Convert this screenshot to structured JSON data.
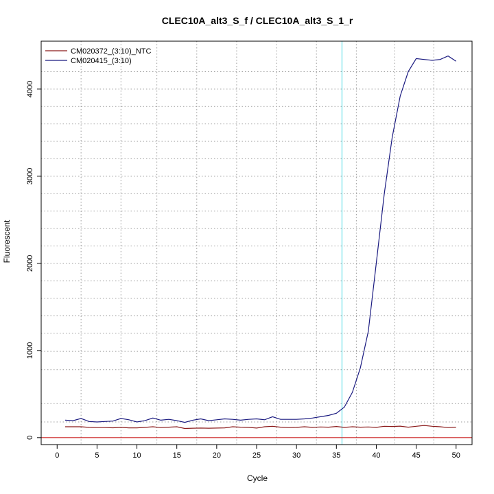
{
  "chart_data": {
    "type": "line",
    "title": "CLEC10A_alt3_S_f / CLEC10A_alt3_S_1_r",
    "xlabel": "Cycle",
    "ylabel": "Fluorescent",
    "xlim": [
      -2,
      52
    ],
    "ylim": [
      -80,
      4550
    ],
    "x_ticks": [
      0,
      5,
      10,
      15,
      20,
      25,
      30,
      35,
      40,
      45,
      50
    ],
    "y_ticks": [
      0,
      1000,
      2000,
      3000,
      4000
    ],
    "grid": true,
    "grid_x": [
      3,
      8,
      12.5,
      17.5,
      22.5,
      27.5,
      32.5,
      37.5,
      42.3,
      47.2
    ],
    "grid_y": [
      180,
      390,
      780,
      990,
      1200,
      1400,
      1600,
      1800,
      2000,
      2200,
      2400,
      2600,
      2800,
      3000,
      3200,
      3400,
      3600,
      3800,
      4000,
      4200
    ],
    "legend_position": "top-left",
    "series": [
      {
        "name": "CM020372_(3:10)_NTC",
        "color": "#8b1a1a",
        "x": [
          1,
          2,
          3,
          4,
          5,
          6,
          7,
          8,
          9,
          10,
          11,
          12,
          13,
          14,
          15,
          16,
          17,
          18,
          19,
          20,
          21,
          22,
          23,
          24,
          25,
          26,
          27,
          28,
          29,
          30,
          31,
          32,
          33,
          34,
          35,
          36,
          37,
          38,
          39,
          40,
          41,
          42,
          43,
          44,
          45,
          46,
          47,
          48,
          49,
          50
        ],
        "values": [
          125,
          125,
          125,
          118,
          115,
          115,
          113,
          118,
          112,
          112,
          118,
          125,
          115,
          120,
          125,
          105,
          108,
          110,
          108,
          110,
          112,
          125,
          120,
          118,
          110,
          125,
          130,
          120,
          115,
          118,
          125,
          118,
          122,
          120,
          128,
          118,
          125,
          120,
          122,
          118,
          130,
          128,
          132,
          120,
          130,
          140,
          130,
          125,
          115,
          120
        ]
      },
      {
        "name": "CM020415_(3:10)",
        "color": "#1a1a80",
        "x": [
          1,
          2,
          3,
          4,
          5,
          6,
          7,
          8,
          9,
          10,
          11,
          12,
          13,
          14,
          15,
          16,
          17,
          18,
          19,
          20,
          21,
          22,
          23,
          24,
          25,
          26,
          27,
          28,
          29,
          30,
          31,
          32,
          33,
          34,
          35,
          36,
          37,
          38,
          39,
          40,
          41,
          42,
          43,
          44,
          45,
          46,
          47,
          48,
          49,
          50
        ],
        "values": [
          200,
          195,
          220,
          185,
          180,
          185,
          190,
          220,
          205,
          180,
          195,
          225,
          200,
          210,
          195,
          175,
          200,
          215,
          195,
          205,
          215,
          210,
          200,
          210,
          215,
          205,
          240,
          210,
          210,
          210,
          215,
          225,
          240,
          255,
          280,
          350,
          520,
          800,
          1220,
          2000,
          2800,
          3450,
          3920,
          4200,
          4350,
          4340,
          4330,
          4340,
          4380,
          4320
        ]
      },
      {
        "name": "",
        "color": "#cc2222",
        "x": [
          -2,
          52
        ],
        "values": [
          0,
          0
        ]
      }
    ],
    "threshold_line": {
      "x": 35.7,
      "color": "#66e0e8"
    }
  }
}
